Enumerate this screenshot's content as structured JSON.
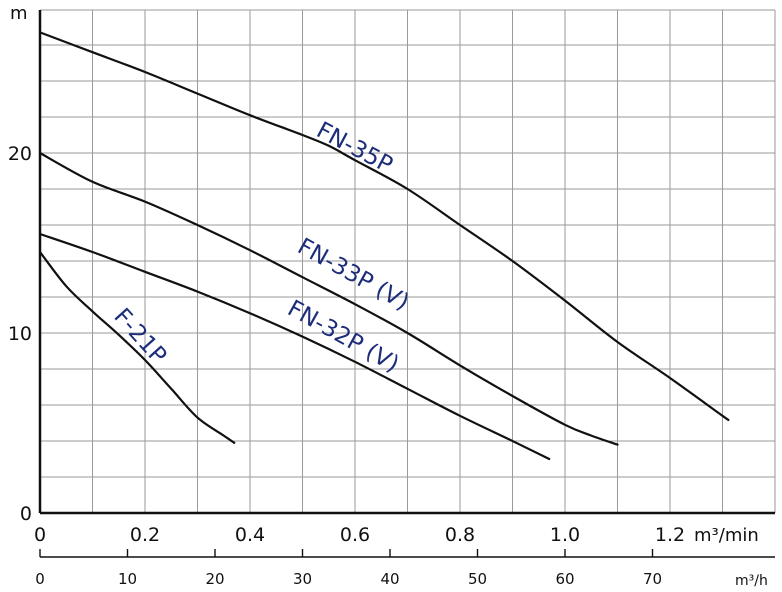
{
  "chart_data": {
    "type": "line",
    "ylabel": "m",
    "xlabel": "m³/min",
    "x2label": "m³/h",
    "xlim": [
      0,
      1.4
    ],
    "ylim": [
      0,
      27
    ],
    "yticks": [
      0,
      10,
      20
    ],
    "xticks": [
      "0",
      "0.2",
      "0.4",
      "0.6",
      "0.8",
      "1.0",
      "1.2"
    ],
    "x2ticks": [
      0,
      10,
      20,
      30,
      40,
      50,
      60,
      70
    ],
    "grid": true,
    "series": [
      {
        "name": "FN-35P",
        "x": [
          0,
          0.1,
          0.2,
          0.3,
          0.4,
          0.5,
          0.55,
          0.6,
          0.7,
          0.8,
          0.9,
          1.0,
          1.1,
          1.2,
          1.3,
          1.31
        ],
        "y": [
          26.7,
          25.6,
          24.5,
          23.3,
          22.1,
          21.0,
          20.4,
          19.6,
          18.0,
          16.0,
          14.0,
          11.8,
          9.5,
          7.5,
          5.4,
          5.2
        ]
      },
      {
        "name": "FN-33P (V)",
        "x": [
          0,
          0.1,
          0.2,
          0.3,
          0.4,
          0.5,
          0.6,
          0.7,
          0.8,
          0.9,
          1.0,
          1.05,
          1.1
        ],
        "y": [
          20.0,
          18.4,
          17.3,
          16.0,
          14.6,
          13.1,
          11.6,
          10.0,
          8.2,
          6.5,
          4.9,
          4.3,
          3.8
        ]
      },
      {
        "name": "FN-32P (V)",
        "x": [
          0,
          0.1,
          0.2,
          0.3,
          0.4,
          0.5,
          0.6,
          0.7,
          0.8,
          0.9,
          0.97
        ],
        "y": [
          15.5,
          14.5,
          13.4,
          12.3,
          11.1,
          9.8,
          8.4,
          6.9,
          5.4,
          4.0,
          3.0
        ]
      },
      {
        "name": "F-21P",
        "x": [
          0,
          0.05,
          0.1,
          0.15,
          0.2,
          0.25,
          0.3,
          0.35,
          0.37
        ],
        "y": [
          14.5,
          12.6,
          11.2,
          9.9,
          8.5,
          6.9,
          5.3,
          4.3,
          3.9
        ]
      }
    ],
    "annotations": [
      "FN-35P",
      "FN-33P (V)",
      "FN-32P (V)",
      "F-21P"
    ]
  }
}
